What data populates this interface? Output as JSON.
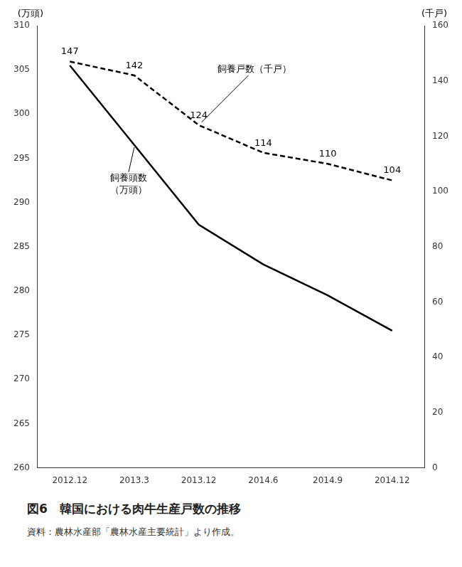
{
  "chart_data": {
    "type": "line",
    "title": "図6　韓国における肉牛生産戸数の推移",
    "source": "資料：農林水産部「農林水産主要統計」より作成。",
    "categories": [
      "2012.12",
      "2013.3",
      "2013.12",
      "2014.6",
      "2014.9",
      "2014.12"
    ],
    "series": [
      {
        "color": "#000000",
        "line_style": "solid",
        "values": [
          305.5,
          296.5,
          287.5,
          283.0,
          279.5,
          275.5
        ]
      },
      {
        "color": "#000000",
        "line_style": "dashed",
        "axis": "y2",
        "data_labels": true,
        "values": [
          147,
          142,
          124,
          114,
          110,
          104
        ]
      }
    ],
    "y_label": "(万頭)",
    "y2_label": "(千戸)",
    "ylim": [
      260,
      310
    ],
    "yticks": [
      260,
      265,
      270,
      275,
      280,
      285,
      290,
      295,
      300,
      305,
      310
    ],
    "y2lim": [
      0,
      160
    ],
    "y2ticks": [
      0,
      20,
      40,
      60,
      80,
      100,
      120,
      140,
      160
    ],
    "grid": false,
    "annotations": [
      {
        "text": "飼養戸数（千戸）",
        "x": "2013.12",
        "axis": "y2"
      },
      {
        "text": "飼養頭数\n（万頭）",
        "x": "2013.3",
        "axis": "y"
      }
    ]
  }
}
